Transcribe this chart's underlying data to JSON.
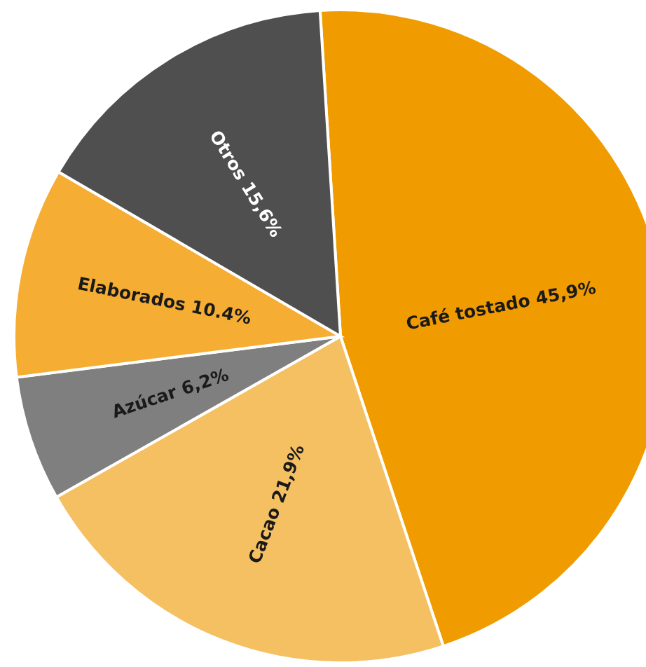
{
  "chart_data": {
    "type": "pie",
    "categories": [
      "Café tostado",
      "Cacao",
      "Azúcar",
      "Elaborados",
      "Otros"
    ],
    "values": [
      45.9,
      21.9,
      6.2,
      10.4,
      15.6
    ],
    "value_labels": [
      "45,9%",
      "21,9%",
      "6,2%",
      "10.4%",
      "15,6%"
    ],
    "colors": [
      "#f09c00",
      "#f5c062",
      "#7f7f7f",
      "#f5ae33",
      "#4f4f4f"
    ],
    "legend": false
  }
}
